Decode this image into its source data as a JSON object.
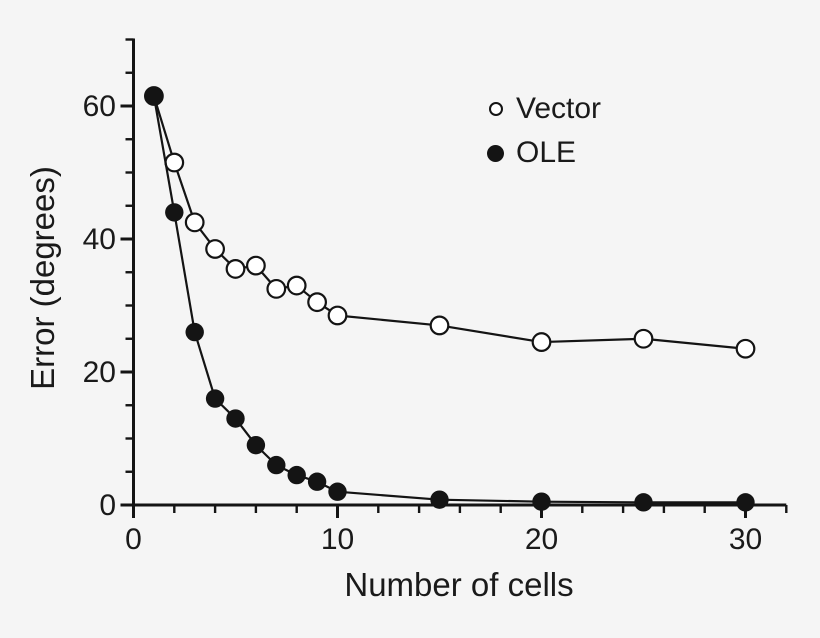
{
  "colors": {
    "background": "#f5f5f5",
    "ink": "#141414",
    "text": "#1a1a1a",
    "open_marker_fill": "#ffffff"
  },
  "chart_data": {
    "type": "line",
    "title": "",
    "xlabel": "Number of cells",
    "ylabel": "Error (degrees)",
    "xlim": [
      0,
      32
    ],
    "ylim": [
      0,
      70
    ],
    "grid": false,
    "legend_position": "inside-upper-right",
    "x_major_ticks": [
      0,
      10,
      20,
      30
    ],
    "x_minor_tick_step": 2,
    "y_major_ticks": [
      0,
      20,
      40,
      60
    ],
    "y_minor_tick_step": 5,
    "series": [
      {
        "name": "Vector",
        "marker": "open-circle",
        "x": [
          1,
          2,
          3,
          4,
          5,
          6,
          7,
          8,
          9,
          10,
          15,
          20,
          25,
          30
        ],
        "y": [
          61.5,
          51.5,
          42.5,
          38.5,
          35.5,
          36,
          32.5,
          33,
          30.5,
          28.5,
          27,
          24.5,
          25,
          23.5
        ]
      },
      {
        "name": "OLE",
        "marker": "filled-circle",
        "x": [
          1,
          2,
          3,
          4,
          5,
          6,
          7,
          8,
          9,
          10,
          15,
          20,
          25,
          30
        ],
        "y": [
          61.5,
          44,
          26,
          16,
          13,
          9,
          6,
          4.5,
          3.5,
          2,
          0.8,
          0.5,
          0.4,
          0.4
        ]
      }
    ]
  }
}
